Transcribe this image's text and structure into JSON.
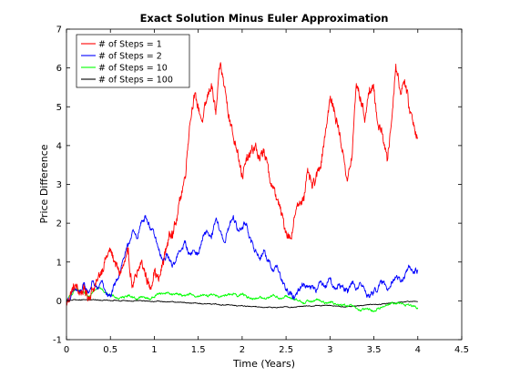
{
  "chart_data": {
    "type": "line",
    "title": "Exact Solution Minus Euler Approximation",
    "xlabel": "Time (Years)",
    "ylabel": "Price Difference",
    "xlim": [
      0,
      4.5
    ],
    "ylim": [
      -1,
      7
    ],
    "xticks": [
      "0",
      "0.5",
      "1",
      "1.5",
      "2",
      "2.5",
      "3",
      "3.5",
      "4",
      "4.5"
    ],
    "yticks": [
      "-1",
      "0",
      "1",
      "2",
      "3",
      "4",
      "5",
      "6",
      "7"
    ],
    "grid": false,
    "legend_position": "top-left",
    "series": [
      {
        "name": "# of Steps = 1",
        "color": "#ff0000",
        "x": [
          0,
          0.05,
          0.1,
          0.15,
          0.2,
          0.25,
          0.3,
          0.35,
          0.4,
          0.45,
          0.5,
          0.55,
          0.6,
          0.65,
          0.7,
          0.75,
          0.8,
          0.85,
          0.9,
          0.95,
          1.0,
          1.05,
          1.1,
          1.15,
          1.2,
          1.25,
          1.3,
          1.35,
          1.4,
          1.45,
          1.5,
          1.55,
          1.6,
          1.65,
          1.7,
          1.75,
          1.8,
          1.85,
          1.9,
          1.95,
          2.0,
          2.05,
          2.1,
          2.15,
          2.2,
          2.25,
          2.3,
          2.35,
          2.4,
          2.45,
          2.5,
          2.55,
          2.6,
          2.65,
          2.7,
          2.75,
          2.8,
          2.85,
          2.9,
          2.95,
          3.0,
          3.05,
          3.1,
          3.15,
          3.2,
          3.25,
          3.3,
          3.35,
          3.4,
          3.45,
          3.5,
          3.55,
          3.6,
          3.65,
          3.7,
          3.75,
          3.8,
          3.85,
          3.9,
          3.95,
          4.0
        ],
        "values": [
          -0.1,
          0.2,
          0.4,
          0.2,
          0.3,
          0.1,
          0.3,
          0.5,
          0.8,
          1.1,
          1.3,
          1.0,
          0.7,
          0.9,
          1.2,
          0.4,
          0.6,
          1.0,
          0.7,
          0.3,
          0.8,
          0.5,
          1.0,
          1.5,
          1.8,
          2.0,
          2.7,
          3.2,
          4.5,
          5.3,
          5.0,
          4.6,
          5.2,
          5.6,
          4.8,
          6.1,
          5.5,
          4.8,
          4.2,
          3.9,
          3.2,
          3.6,
          3.8,
          4.0,
          3.6,
          3.9,
          3.3,
          2.9,
          2.6,
          2.2,
          1.8,
          1.6,
          2.2,
          2.5,
          2.7,
          3.3,
          2.9,
          3.2,
          3.6,
          4.4,
          5.2,
          4.9,
          4.4,
          3.8,
          3.1,
          3.7,
          5.6,
          5.2,
          4.7,
          5.5,
          5.4,
          4.5,
          4.3,
          3.6,
          4.6,
          6.1,
          5.4,
          5.7,
          5.0,
          4.6,
          4.2
        ]
      },
      {
        "name": "# of Steps = 2",
        "color": "#0000ff",
        "x": [
          0,
          0.05,
          0.1,
          0.15,
          0.2,
          0.25,
          0.3,
          0.35,
          0.4,
          0.45,
          0.5,
          0.55,
          0.6,
          0.65,
          0.7,
          0.75,
          0.8,
          0.85,
          0.9,
          0.95,
          1.0,
          1.05,
          1.1,
          1.15,
          1.2,
          1.25,
          1.3,
          1.35,
          1.4,
          1.45,
          1.5,
          1.55,
          1.6,
          1.65,
          1.7,
          1.75,
          1.8,
          1.85,
          1.9,
          1.95,
          2.0,
          2.05,
          2.1,
          2.15,
          2.2,
          2.25,
          2.3,
          2.35,
          2.4,
          2.45,
          2.5,
          2.55,
          2.6,
          2.65,
          2.7,
          2.75,
          2.8,
          2.85,
          2.9,
          2.95,
          3.0,
          3.05,
          3.1,
          3.15,
          3.2,
          3.25,
          3.3,
          3.35,
          3.4,
          3.45,
          3.5,
          3.55,
          3.6,
          3.65,
          3.7,
          3.75,
          3.8,
          3.85,
          3.9,
          3.95,
          4.0
        ],
        "values": [
          0.0,
          0.1,
          0.3,
          0.2,
          0.4,
          0.2,
          0.5,
          0.3,
          0.5,
          0.2,
          0.1,
          0.4,
          0.7,
          1.1,
          1.4,
          1.8,
          1.6,
          2.0,
          2.2,
          1.9,
          1.7,
          1.3,
          1.0,
          1.2,
          0.9,
          1.1,
          1.3,
          1.5,
          1.2,
          1.3,
          1.2,
          1.6,
          1.8,
          1.6,
          2.1,
          1.8,
          1.5,
          1.9,
          2.2,
          1.8,
          1.9,
          2.0,
          1.5,
          1.3,
          1.1,
          1.3,
          1.0,
          0.8,
          0.9,
          0.5,
          0.3,
          0.15,
          0.1,
          0.3,
          0.45,
          0.35,
          0.4,
          0.3,
          0.5,
          0.4,
          0.6,
          0.3,
          0.4,
          0.35,
          0.2,
          0.5,
          0.3,
          0.45,
          0.25,
          0.1,
          0.25,
          0.35,
          0.5,
          0.3,
          0.5,
          0.6,
          0.5,
          0.6,
          0.9,
          0.7,
          0.8
        ]
      },
      {
        "name": "# of Steps = 10",
        "color": "#00ff00",
        "x": [
          0,
          0.05,
          0.1,
          0.15,
          0.2,
          0.25,
          0.3,
          0.35,
          0.4,
          0.45,
          0.5,
          0.55,
          0.6,
          0.65,
          0.7,
          0.75,
          0.8,
          0.85,
          0.9,
          0.95,
          1.0,
          1.05,
          1.1,
          1.15,
          1.2,
          1.25,
          1.3,
          1.35,
          1.4,
          1.45,
          1.5,
          1.55,
          1.6,
          1.65,
          1.7,
          1.75,
          1.8,
          1.85,
          1.9,
          1.95,
          2.0,
          2.05,
          2.1,
          2.15,
          2.2,
          2.25,
          2.3,
          2.35,
          2.4,
          2.45,
          2.5,
          2.55,
          2.6,
          2.65,
          2.7,
          2.75,
          2.8,
          2.85,
          2.9,
          2.95,
          3.0,
          3.05,
          3.1,
          3.15,
          3.2,
          3.25,
          3.3,
          3.35,
          3.4,
          3.45,
          3.5,
          3.55,
          3.6,
          3.65,
          3.7,
          3.75,
          3.8,
          3.85,
          3.9,
          3.95,
          4.0
        ],
        "values": [
          0.0,
          0.15,
          0.3,
          0.25,
          0.2,
          0.1,
          0.25,
          0.35,
          0.3,
          0.2,
          0.15,
          0.1,
          0.05,
          0.1,
          0.15,
          0.1,
          0.05,
          0.1,
          0.08,
          0.05,
          0.1,
          0.2,
          0.18,
          0.22,
          0.15,
          0.2,
          0.15,
          0.12,
          0.18,
          0.14,
          0.1,
          0.15,
          0.12,
          0.18,
          0.15,
          0.1,
          0.12,
          0.15,
          0.2,
          0.12,
          0.18,
          0.1,
          0.08,
          0.05,
          0.1,
          0.05,
          0.1,
          0.15,
          0.1,
          0.05,
          0.12,
          0.08,
          0.02,
          0.0,
          -0.05,
          0.0,
          -0.03,
          0.05,
          -0.02,
          -0.05,
          -0.02,
          -0.08,
          -0.12,
          -0.1,
          -0.15,
          -0.12,
          -0.2,
          -0.25,
          -0.22,
          -0.2,
          -0.28,
          -0.2,
          -0.15,
          -0.1,
          -0.05,
          -0.08,
          -0.05,
          -0.1,
          -0.12,
          -0.15,
          -0.18
        ]
      },
      {
        "name": "# of Steps = 100",
        "color": "#000000",
        "x": [
          0,
          0.05,
          0.1,
          0.15,
          0.2,
          0.25,
          0.3,
          0.35,
          0.4,
          0.45,
          0.5,
          0.55,
          0.6,
          0.65,
          0.7,
          0.75,
          0.8,
          0.85,
          0.9,
          0.95,
          1.0,
          1.05,
          1.1,
          1.15,
          1.2,
          1.25,
          1.3,
          1.35,
          1.4,
          1.45,
          1.5,
          1.55,
          1.6,
          1.65,
          1.7,
          1.75,
          1.8,
          1.85,
          1.9,
          1.95,
          2.0,
          2.05,
          2.1,
          2.15,
          2.2,
          2.25,
          2.3,
          2.35,
          2.4,
          2.45,
          2.5,
          2.55,
          2.6,
          2.65,
          2.7,
          2.75,
          2.8,
          2.85,
          2.9,
          2.95,
          3.0,
          3.05,
          3.1,
          3.15,
          3.2,
          3.25,
          3.3,
          3.35,
          3.4,
          3.45,
          3.5,
          3.55,
          3.6,
          3.65,
          3.7,
          3.75,
          3.8,
          3.85,
          3.9,
          3.95,
          4.0
        ],
        "values": [
          0.0,
          0.02,
          0.03,
          0.02,
          0.03,
          0.02,
          0.03,
          0.02,
          0.01,
          0.02,
          0.0,
          0.01,
          0.0,
          0.01,
          0.0,
          -0.01,
          0.0,
          0.01,
          0.0,
          -0.01,
          -0.02,
          -0.01,
          -0.02,
          -0.03,
          -0.02,
          -0.04,
          -0.03,
          -0.05,
          -0.06,
          -0.05,
          -0.07,
          -0.08,
          -0.07,
          -0.09,
          -0.08,
          -0.1,
          -0.11,
          -0.1,
          -0.12,
          -0.13,
          -0.12,
          -0.14,
          -0.15,
          -0.14,
          -0.16,
          -0.17,
          -0.16,
          -0.18,
          -0.17,
          -0.16,
          -0.15,
          -0.17,
          -0.16,
          -0.15,
          -0.14,
          -0.13,
          -0.14,
          -0.12,
          -0.13,
          -0.11,
          -0.12,
          -0.13,
          -0.14,
          -0.16,
          -0.15,
          -0.14,
          -0.13,
          -0.12,
          -0.11,
          -0.1,
          -0.09,
          -0.1,
          -0.08,
          -0.07,
          -0.05,
          -0.06,
          -0.04,
          -0.03,
          -0.02,
          -0.01,
          -0.02
        ]
      }
    ]
  }
}
